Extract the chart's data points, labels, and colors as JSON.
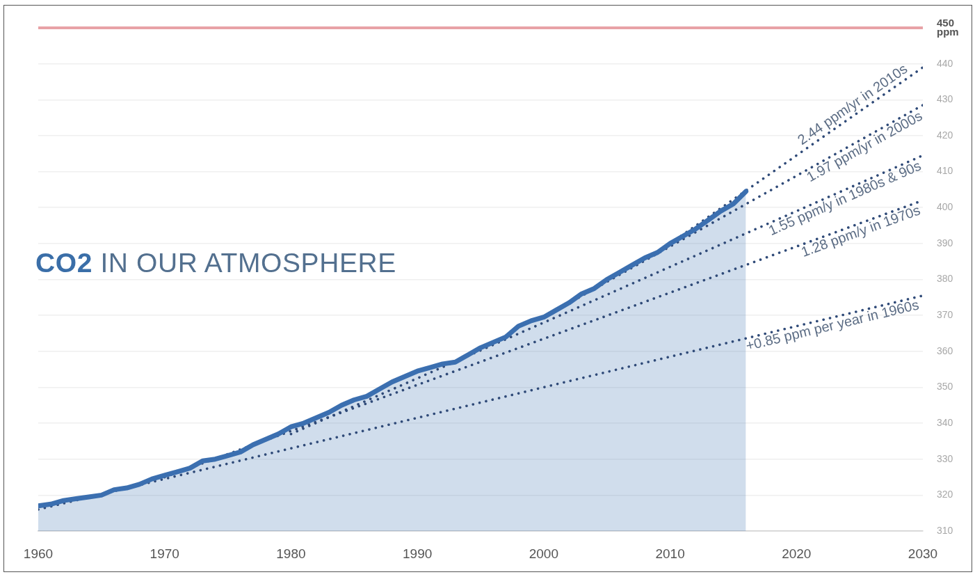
{
  "chart_data": {
    "type": "area",
    "title": "CO2 IN OUR ATMOSPHERE",
    "x": [
      1960,
      1961,
      1962,
      1963,
      1964,
      1965,
      1966,
      1967,
      1968,
      1969,
      1970,
      1971,
      1972,
      1973,
      1974,
      1975,
      1976,
      1977,
      1978,
      1979,
      1980,
      1981,
      1982,
      1983,
      1984,
      1985,
      1986,
      1987,
      1988,
      1989,
      1990,
      1991,
      1992,
      1993,
      1994,
      1995,
      1996,
      1997,
      1998,
      1999,
      2000,
      2001,
      2002,
      2003,
      2004,
      2005,
      2006,
      2007,
      2008,
      2009,
      2010,
      2011,
      2012,
      2013,
      2014,
      2015,
      2016
    ],
    "series": [
      {
        "color": "#3b6fb0",
        "values": [
          317,
          317.5,
          318.5,
          319,
          319.5,
          320,
          321.5,
          322,
          323,
          324.5,
          325.5,
          326.5,
          327.5,
          329.5,
          330,
          331,
          332,
          334,
          335.5,
          337,
          339,
          340,
          341.5,
          343,
          345,
          346.5,
          347.5,
          349.5,
          351.5,
          353,
          354.5,
          355.5,
          356.5,
          357,
          359,
          361,
          362.5,
          364,
          367,
          368.5,
          369.5,
          371.5,
          373.5,
          376,
          377.5,
          380,
          382,
          384,
          386,
          387.5,
          390,
          392,
          394,
          396.5,
          399,
          401,
          404.5
        ]
      },
      {
        "type": "line",
        "name": "+0.85 ppm per year in 1960s",
        "color": "#2f4a78",
        "line_style": "dotted",
        "x": [
          1960,
          2030
        ],
        "values": [
          316,
          375.5
        ]
      },
      {
        "type": "line",
        "name": "1.28 ppm/y in 1970s",
        "color": "#2f4a78",
        "line_style": "dotted",
        "x": [
          1970,
          2030
        ],
        "values": [
          325,
          402
        ]
      },
      {
        "type": "line",
        "name": "1.55 ppm/y in 1980s & 90s",
        "color": "#2f4a78",
        "line_style": "dotted",
        "x": [
          1980,
          2030
        ],
        "values": [
          337,
          414.5
        ]
      },
      {
        "type": "line",
        "name": "1.97 ppm/yr in 2000s",
        "color": "#2f4a78",
        "line_style": "dotted",
        "x": [
          2000,
          2030
        ],
        "values": [
          369.5,
          428.5
        ]
      },
      {
        "type": "line",
        "name": "2.44 ppm/yr in 2010s",
        "color": "#2f4a78",
        "line_style": "dotted",
        "x": [
          2010,
          2030
        ],
        "values": [
          390,
          439
        ]
      }
    ],
    "xlim": [
      1960,
      2030
    ],
    "xticks": [
      1960,
      1970,
      1980,
      1990,
      2000,
      2010,
      2020,
      2030
    ],
    "ylim": [
      310,
      450
    ],
    "yticks": [
      310,
      320,
      330,
      340,
      350,
      360,
      370,
      380,
      390,
      400,
      410,
      420,
      430,
      440
    ],
    "ref_lines": [
      {
        "axis": "y",
        "value": 450,
        "label": "450 ppm",
        "color": "#e8a2a6"
      }
    ],
    "grid": "y",
    "legend": false
  }
}
